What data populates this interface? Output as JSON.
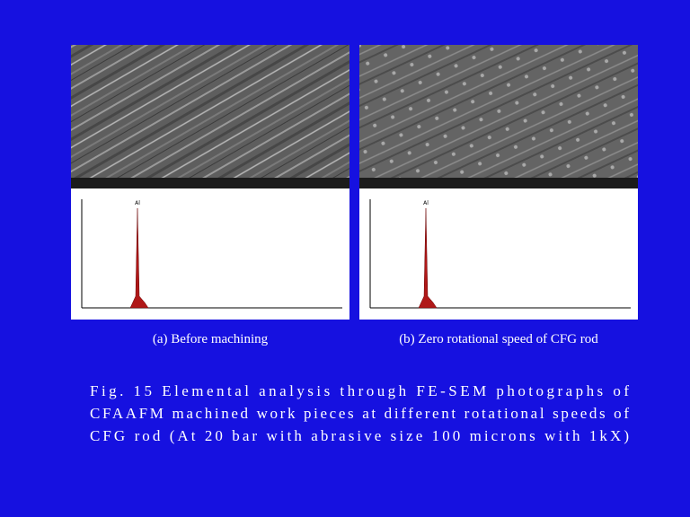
{
  "figures": [
    {
      "caption": "(a) Before machining",
      "peak_label": "Al"
    },
    {
      "caption": "(b) Zero rotational speed of CFG rod",
      "peak_label": "Al"
    }
  ],
  "caption_lines": [
    "Fig. 15 Elemental analysis through FE-SEM photographs of",
    "CFAAFM machined work pieces at different rotational speeds of",
    "CFG rod (At 20 bar with abrasive size 100 microns with 1kX)"
  ]
}
